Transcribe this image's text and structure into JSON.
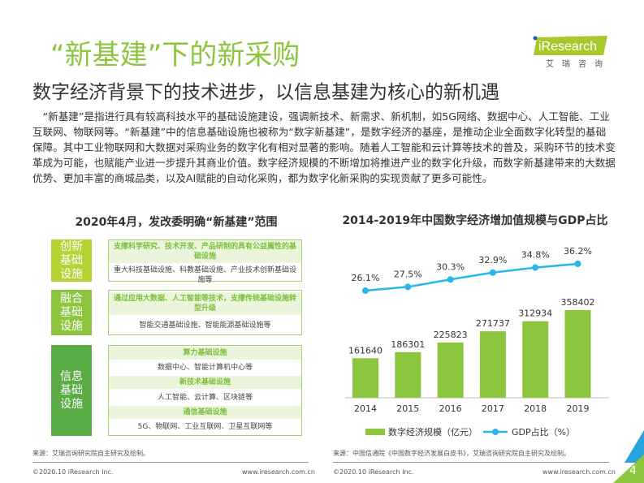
{
  "title": "“新基建”下的新采购",
  "subtitle": "数字经济背景下的技术进步，以信息基建为核心的新机遇",
  "logo": {
    "brand": "iResearch",
    "sub": "艾瑞咨询"
  },
  "paragraph": "“新基建”是指进行具有较高科技水平的基础设施建设，强调新技术、新需求、新机制，如5G网络、数据中心、人工智能、工业互联网、物联网等。“新基建”中的信息基础设施也被称为“数字新基建”，是数字经济的基座，是推动企业全面数字化转型的基础保障。其中工业物联网和大数据对采购业务的数字化有相对显著的影响。随着人工智能和云计算等技术的普及，采购环节的技术变革成为可能，也赋能产业进一步提升其商业价值。数字经济规模的不断增加将推进产业的数字化升级，而数字新基建带来的大数据优势、更加丰富的商城品类，以及AI赋能的自动化采购，都为数字化新采购的实现贡献了更多可能性。",
  "left": {
    "heading": "2020年4月，发改委明确“新基建”范围",
    "groups": [
      {
        "label": "创新基础设施",
        "color": "#b5d334",
        "items": [
          {
            "h": "支撑科学研究、技术开发、产品研制的具有公益属性的基础设施",
            "d": "重大科技基础设施、科教基础设施、产业技术创新基础设施等"
          }
        ]
      },
      {
        "label": "融合基础设施",
        "color": "#8cc63f",
        "items": [
          {
            "h": "通过应用大数据、人工智能等技术，支撑传统基础设施转型升级",
            "d": "智能交通基础设施、智能能源基础设施等"
          }
        ]
      },
      {
        "label": "信息基础设施",
        "color": "#5aac44",
        "items": [
          {
            "h": "算力基础设施",
            "d": "数据中心、智能计算机中心等"
          },
          {
            "h": "新技术基础设施",
            "d": "人工智能、云计算、区块链等"
          },
          {
            "h": "通信基础设施",
            "d": "5G、物联网、工业互联网、卫星互联网等"
          }
        ]
      }
    ],
    "source": "来源：艾瑞咨询研究院自主研究及绘制。"
  },
  "chart_data": {
    "type": "bar+line",
    "title": "2014-2019年中国数字经济增加值规模与GDP占比",
    "categories": [
      "2014",
      "2015",
      "2016",
      "2017",
      "2018",
      "2019"
    ],
    "series": [
      {
        "name": "数字经济规模（亿元）",
        "type": "bar",
        "color": "#8cc63f",
        "values": [
          161640,
          186301,
          225823,
          271737,
          312934,
          358402
        ]
      },
      {
        "name": "GDP占比（%）",
        "type": "line",
        "color": "#29b6e8",
        "values": [
          26.1,
          27.5,
          30.3,
          32.9,
          34.8,
          36.2
        ],
        "labels": [
          "26.1%",
          "27.5%",
          "30.3%",
          "32.9%",
          "34.8%",
          "36.2%"
        ]
      }
    ],
    "source": "来源：中国信通院《中国数字经济发展白皮书》，艾瑞咨询研究院自主研究及绘制。"
  },
  "footer": {
    "copyright": "©2020.10 iResearch Inc.",
    "url": "www.iresearch.com.cn",
    "page": "4"
  }
}
